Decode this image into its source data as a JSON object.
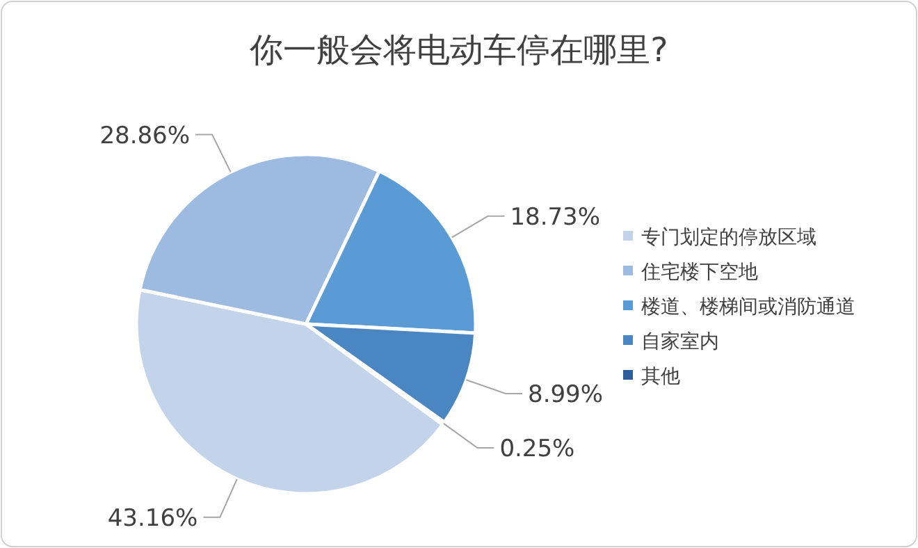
{
  "chart_data": {
    "type": "pie",
    "title": "你一般会将电动车停在哪里?",
    "categories": [
      "专门划定的停放区域",
      "住宅楼下空地",
      "楼道、楼梯间或消防通道",
      "自家室内",
      "其他"
    ],
    "values": [
      43.16,
      28.86,
      18.73,
      8.99,
      0.25
    ],
    "value_labels": [
      "43.16%",
      "28.86%",
      "18.73%",
      "8.99%",
      "0.25%"
    ],
    "colors": [
      "#c3d4ea",
      "#9dbbe1",
      "#5b9bd5",
      "#4a86c2",
      "#2f5f9a"
    ],
    "legend": "right"
  }
}
